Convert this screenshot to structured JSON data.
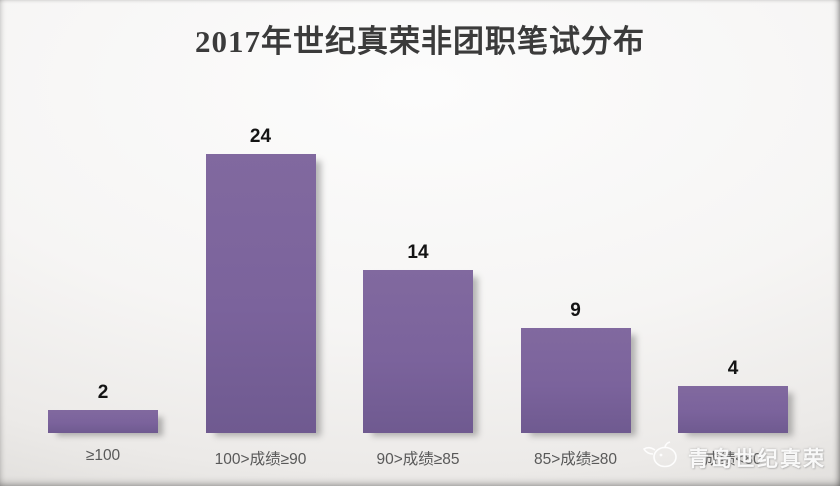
{
  "chart_data": {
    "type": "bar",
    "title": "2017年世纪真荣非团职笔试分布",
    "categories": [
      "≥100",
      "100>成绩≥90",
      "90>成绩≥85",
      "85>成绩≥80",
      "成绩<80"
    ],
    "values": [
      2,
      24,
      14,
      9,
      4
    ],
    "xlabel": "",
    "ylabel": "",
    "ylim": [
      0,
      28
    ],
    "grid": false,
    "legend": false,
    "bar_color": "#7B639C",
    "value_label_color": "#141414",
    "category_label_color": "#595959",
    "title_color": "#3B3B3B",
    "background_color": "#F3F2F1"
  },
  "watermark": {
    "text": "青岛世纪真荣",
    "logo": "mascot-logo-icon"
  }
}
